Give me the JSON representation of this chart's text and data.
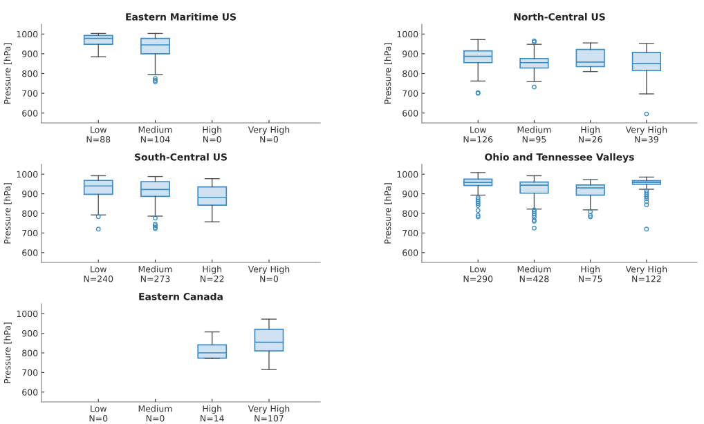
{
  "chart_data": [
    {
      "type": "box",
      "title": "Eastern Maritime US",
      "ylabel": "Pressure [hPa]",
      "categories": [
        "Low\nN=88",
        "Medium\nN=104",
        "High\nN=0",
        "Very High\nN=0"
      ],
      "ylim": [
        550,
        1050
      ],
      "yticks": [
        600,
        700,
        800,
        900,
        1000
      ],
      "grid": false,
      "series": [
        {
          "color": "#3a8dc8",
          "boxes": [
            {
              "low": 885,
              "q1": 948,
              "median": 978,
              "q3": 993,
              "high": 1003
            },
            {
              "low": 795,
              "q1": 900,
              "median": 945,
              "q3": 978,
              "high": 1003,
              "outliers": [
                775,
                765,
                758
              ]
            },
            null,
            null
          ]
        }
      ]
    },
    {
      "type": "box",
      "title": "North-Central US",
      "ylabel": "Pressure [hPa]",
      "categories": [
        "Low\nN=126",
        "Medium\nN=95",
        "High\nN=26",
        "Very High\nN=39"
      ],
      "ylim": [
        550,
        1050
      ],
      "yticks": [
        600,
        700,
        800,
        900,
        1000
      ],
      "grid": false,
      "series": [
        {
          "color": "#3a8dc8",
          "boxes": [
            {
              "low": 762,
              "q1": 855,
              "median": 887,
              "q3": 915,
              "high": 972,
              "outliers": [
                703,
                700
              ]
            },
            {
              "low": 760,
              "q1": 828,
              "median": 855,
              "q3": 876,
              "high": 948,
              "outliers": [
                965,
                960,
                732
              ]
            },
            {
              "low": 810,
              "q1": 835,
              "median": 858,
              "q3": 922,
              "high": 955
            },
            {
              "low": 697,
              "q1": 815,
              "median": 850,
              "q3": 907,
              "high": 952,
              "outliers": [
                595
              ]
            }
          ]
        }
      ]
    },
    {
      "type": "box",
      "title": "South-Central US",
      "ylabel": "Pressure [hPa]",
      "categories": [
        "Low\nN=240",
        "Medium\nN=273",
        "High\nN=22",
        "Very High\nN=0"
      ],
      "ylim": [
        550,
        1050
      ],
      "yticks": [
        600,
        700,
        800,
        900,
        1000
      ],
      "grid": false,
      "series": [
        {
          "color": "#3a8dc8",
          "boxes": [
            {
              "low": 792,
              "q1": 897,
              "median": 940,
              "q3": 968,
              "high": 992,
              "outliers": [
                783,
                720
              ]
            },
            {
              "low": 786,
              "q1": 887,
              "median": 922,
              "q3": 962,
              "high": 988,
              "outliers": [
                776,
                745,
                738,
                728,
                722
              ]
            },
            {
              "low": 757,
              "q1": 842,
              "median": 882,
              "q3": 935,
              "high": 977
            },
            null
          ]
        }
      ]
    },
    {
      "type": "box",
      "title": "Ohio and Tennessee Valleys",
      "ylabel": "Pressure [hPa]",
      "categories": [
        "Low\nN=290",
        "Medium\nN=428",
        "High\nN=75",
        "Very High\nN=122"
      ],
      "ylim": [
        550,
        1050
      ],
      "yticks": [
        600,
        700,
        800,
        900,
        1000
      ],
      "grid": false,
      "series": [
        {
          "color": "#3a8dc8",
          "boxes": [
            {
              "low": 893,
              "q1": 942,
              "median": 958,
              "q3": 975,
              "high": 1008,
              "outliers": [
                880,
                870,
                860,
                850,
                840,
                815,
                790,
                782
              ]
            },
            {
              "low": 822,
              "q1": 903,
              "median": 944,
              "q3": 960,
              "high": 992,
              "outliers": [
                818,
                810,
                800,
                790,
                780,
                765,
                760,
                725
              ]
            },
            {
              "low": 818,
              "q1": 893,
              "median": 930,
              "q3": 945,
              "high": 972,
              "outliers": [
                808,
                790,
                782
              ]
            },
            {
              "low": 923,
              "q1": 948,
              "median": 958,
              "q3": 967,
              "high": 985,
              "outliers": [
                915,
                905,
                895,
                885,
                875,
                860,
                843,
                720
              ]
            }
          ]
        }
      ]
    },
    {
      "type": "box",
      "title": "Eastern Canada",
      "ylabel": "Pressure [hPa]",
      "categories": [
        "Low\nN=0",
        "Medium\nN=0",
        "High\nN=14",
        "Very High\nN=107"
      ],
      "ylim": [
        550,
        1050
      ],
      "yticks": [
        600,
        700,
        800,
        900,
        1000
      ],
      "grid": false,
      "series": [
        {
          "color": "#3a8dc8",
          "boxes": [
            null,
            null,
            {
              "low": 772,
              "q1": 773,
              "median": 800,
              "q3": 841,
              "high": 907
            },
            {
              "low": 715,
              "q1": 810,
              "median": 854,
              "q3": 920,
              "high": 972
            }
          ]
        }
      ]
    }
  ]
}
